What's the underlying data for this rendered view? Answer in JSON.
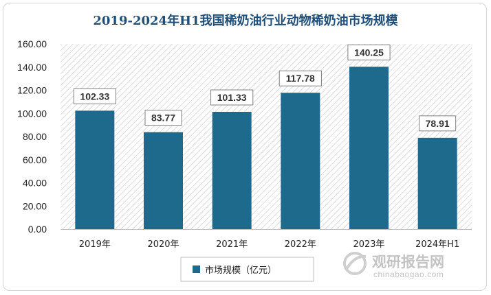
{
  "chart_data": {
    "type": "bar",
    "title": "2019-2024年H1我国稀奶油行业动物稀奶油市场规模",
    "categories": [
      "2019年",
      "2020年",
      "2021年",
      "2022年",
      "2023年",
      "2024年H1"
    ],
    "series": [
      {
        "name": "市场规模（亿元）",
        "values": [
          102.33,
          83.77,
          101.33,
          117.78,
          140.25,
          78.91
        ]
      }
    ],
    "data_labels": [
      "102.33",
      "83.77",
      "101.33",
      "117.78",
      "140.25",
      "78.91"
    ],
    "y_ticks": [
      "0.00",
      "20.00",
      "40.00",
      "60.00",
      "80.00",
      "100.00",
      "120.00",
      "140.00",
      "160.00"
    ],
    "ylim": [
      0,
      160
    ],
    "xlabel": "",
    "ylabel": "",
    "grid": false,
    "legend_position": "bottom",
    "colors": {
      "bar": "#1d6a8c",
      "title": "#1f4e79",
      "hatch": "#d9d9d9",
      "label_border": "#7f7f7f"
    }
  },
  "watermark": {
    "cn": "观研报告网",
    "en": "chinabaogao.com"
  }
}
